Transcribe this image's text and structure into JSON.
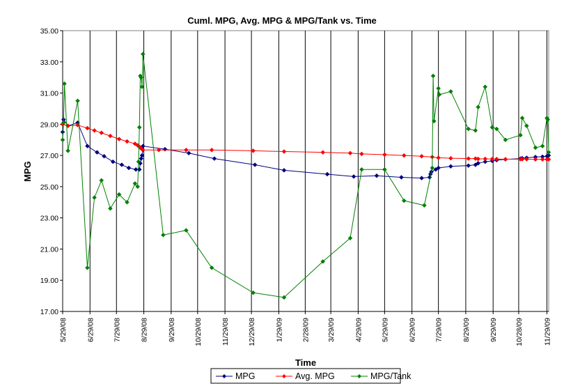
{
  "chart_data": {
    "type": "line",
    "title": "Cuml. MPG, Avg. MPG & MPG/Tank vs. Time",
    "xlabel": "Time",
    "ylabel": "MPG",
    "ylim": [
      17,
      35
    ],
    "y_ticks": [
      "17.00",
      "19.00",
      "21.00",
      "23.00",
      "25.00",
      "27.00",
      "29.00",
      "31.00",
      "33.00",
      "35.00"
    ],
    "x_ticks": [
      "5/29/08",
      "6/29/08",
      "7/29/08",
      "8/29/08",
      "9/29/08",
      "10/29/08",
      "11/29/08",
      "12/29/08",
      "1/29/09",
      "2/28/09",
      "3/29/09",
      "4/29/09",
      "5/29/09",
      "6/29/09",
      "7/29/09",
      "8/29/09",
      "9/29/09",
      "10/28/09",
      "11/29/09"
    ],
    "grid": "vertical lines at month ticks",
    "legend_position": "bottom",
    "series": [
      {
        "name": "MPG",
        "color": "#000080",
        "points": [
          [
            "5/29/08",
            28.5
          ],
          [
            "5/30/08",
            29.3
          ],
          [
            "6/4/08",
            28.9
          ],
          [
            "6/15/08",
            29.1
          ],
          [
            "6/26/08",
            27.6
          ],
          [
            "7/7/08",
            27.2
          ],
          [
            "7/15/08",
            26.95
          ],
          [
            "7/25/08",
            26.6
          ],
          [
            "8/4/08",
            26.4
          ],
          [
            "8/12/08",
            26.2
          ],
          [
            "8/20/08",
            26.1
          ],
          [
            "8/24/08",
            26.1
          ],
          [
            "8/25/08",
            26.5
          ],
          [
            "8/26/08",
            26.8
          ],
          [
            "8/27/08",
            27.0
          ],
          [
            "8/28/08",
            27.6
          ],
          [
            "9/22/08",
            27.4
          ],
          [
            "10/19/08",
            27.15
          ],
          [
            "11/17/08",
            26.8
          ],
          [
            "1/2/09",
            26.4
          ],
          [
            "2/4/09",
            26.05
          ],
          [
            "3/25/09",
            25.8
          ],
          [
            "4/24/09",
            25.65
          ],
          [
            "5/20/09",
            25.7
          ],
          [
            "6/17/09",
            25.6
          ],
          [
            "7/10/09",
            25.55
          ],
          [
            "7/19/09",
            25.6
          ],
          [
            "7/20/09",
            25.8
          ],
          [
            "7/21/09",
            25.95
          ],
          [
            "7/26/09",
            26.1
          ],
          [
            "7/29/09",
            26.2
          ],
          [
            "8/12/09",
            26.3
          ],
          [
            "9/1/09",
            26.35
          ],
          [
            "9/9/09",
            26.4
          ],
          [
            "9/12/09",
            26.5
          ],
          [
            "9/20/09",
            26.6
          ],
          [
            "9/28/09",
            26.65
          ],
          [
            "10/3/09",
            26.7
          ],
          [
            "10/13/09",
            26.75
          ],
          [
            "10/30/09",
            26.8
          ],
          [
            "11/1/09",
            26.82
          ],
          [
            "11/6/09",
            26.85
          ],
          [
            "11/16/09",
            26.9
          ],
          [
            "11/24/09",
            26.92
          ],
          [
            "11/29/09",
            26.95
          ],
          [
            "12/1/09",
            27.0
          ]
        ]
      },
      {
        "name": "Avg. MPG",
        "color": "#ff0000",
        "points": [
          [
            "5/29/08",
            29.0
          ],
          [
            "6/4/08",
            28.9
          ],
          [
            "6/15/08",
            28.95
          ],
          [
            "6/26/08",
            28.75
          ],
          [
            "7/4/08",
            28.6
          ],
          [
            "7/12/08",
            28.45
          ],
          [
            "7/22/08",
            28.25
          ],
          [
            "8/1/08",
            28.05
          ],
          [
            "8/10/08",
            27.9
          ],
          [
            "8/19/08",
            27.75
          ],
          [
            "8/22/08",
            27.65
          ],
          [
            "8/24/08",
            27.55
          ],
          [
            "8/25/08",
            27.5
          ],
          [
            "8/26/08",
            27.45
          ],
          [
            "8/27/08",
            27.4
          ],
          [
            "8/28/08",
            27.35
          ],
          [
            "9/15/08",
            27.35
          ],
          [
            "10/16/08",
            27.35
          ],
          [
            "11/14/08",
            27.35
          ],
          [
            "12/31/08",
            27.3
          ],
          [
            "2/4/09",
            27.25
          ],
          [
            "3/20/09",
            27.2
          ],
          [
            "4/20/09",
            27.15
          ],
          [
            "5/3/09",
            27.1
          ],
          [
            "5/29/09",
            27.05
          ],
          [
            "6/20/09",
            27.0
          ],
          [
            "7/10/09",
            26.95
          ],
          [
            "7/22/09",
            26.9
          ],
          [
            "7/29/09",
            26.85
          ],
          [
            "8/12/09",
            26.82
          ],
          [
            "9/1/09",
            26.8
          ],
          [
            "9/9/09",
            26.8
          ],
          [
            "9/12/09",
            26.78
          ],
          [
            "9/20/09",
            26.78
          ],
          [
            "9/28/09",
            26.77
          ],
          [
            "10/3/09",
            26.77
          ],
          [
            "10/13/09",
            26.76
          ],
          [
            "10/30/09",
            26.76
          ],
          [
            "11/1/09",
            26.76
          ],
          [
            "11/6/09",
            26.76
          ],
          [
            "11/16/09",
            26.75
          ],
          [
            "11/24/09",
            26.75
          ],
          [
            "11/29/09",
            26.75
          ],
          [
            "12/1/09",
            26.75
          ]
        ]
      },
      {
        "name": "MPG/Tank",
        "color": "#008000",
        "points": [
          [
            "5/29/08",
            28.0
          ],
          [
            "5/30/08",
            29.1
          ],
          [
            "5/31/08",
            31.6
          ],
          [
            "6/4/08",
            27.3
          ],
          [
            "6/15/08",
            30.5
          ],
          [
            "6/26/08",
            19.8
          ],
          [
            "7/4/08",
            24.3
          ],
          [
            "7/12/08",
            25.4
          ],
          [
            "7/22/08",
            23.6
          ],
          [
            "8/1/08",
            24.5
          ],
          [
            "8/10/08",
            24.0
          ],
          [
            "8/19/08",
            25.2
          ],
          [
            "8/22/08",
            25.0
          ],
          [
            "8/23/08",
            26.6
          ],
          [
            "8/24/08",
            28.8
          ],
          [
            "8/25/08",
            32.1
          ],
          [
            "8/26/08",
            32.0
          ],
          [
            "8/27/08",
            31.4
          ],
          [
            "8/28/08",
            33.5
          ],
          [
            "9/20/08",
            21.9
          ],
          [
            "10/16/08",
            22.2
          ],
          [
            "11/14/08",
            19.8
          ],
          [
            "12/31/08",
            18.2
          ],
          [
            "2/4/09",
            17.9
          ],
          [
            "3/20/09",
            20.2
          ],
          [
            "4/20/09",
            21.7
          ],
          [
            "5/3/09",
            26.1
          ],
          [
            "5/29/09",
            26.1
          ],
          [
            "6/20/09",
            24.1
          ],
          [
            "7/13/09",
            23.8
          ],
          [
            "7/22/09",
            26.2
          ],
          [
            "7/23/09",
            32.1
          ],
          [
            "7/24/09",
            29.2
          ],
          [
            "7/29/09",
            31.3
          ],
          [
            "7/30/09",
            30.9
          ],
          [
            "8/12/09",
            31.1
          ],
          [
            "9/1/09",
            28.7
          ],
          [
            "9/9/09",
            28.6
          ],
          [
            "9/12/09",
            30.1
          ],
          [
            "9/20/09",
            31.4
          ],
          [
            "9/28/09",
            28.8
          ],
          [
            "10/3/09",
            28.7
          ],
          [
            "10/13/09",
            28.0
          ],
          [
            "10/30/09",
            28.3
          ],
          [
            "11/1/09",
            29.4
          ],
          [
            "11/6/09",
            28.9
          ],
          [
            "11/16/09",
            27.5
          ],
          [
            "11/24/09",
            27.6
          ],
          [
            "11/29/09",
            29.4
          ],
          [
            "11/30/09",
            29.3
          ],
          [
            "12/1/09",
            27.2
          ]
        ]
      }
    ]
  }
}
